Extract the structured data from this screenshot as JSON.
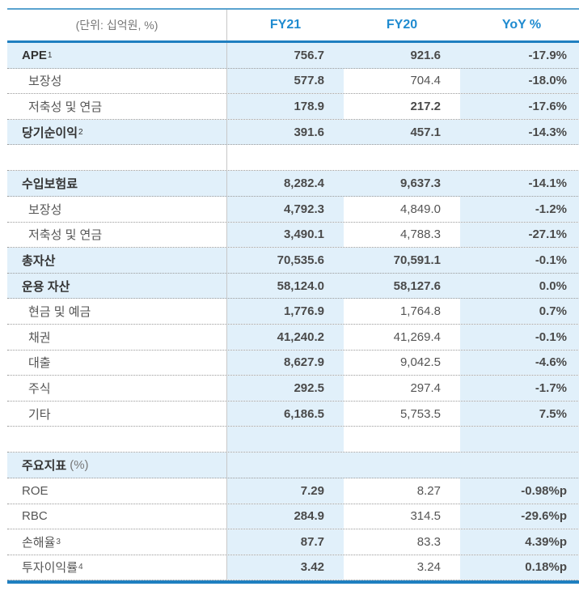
{
  "table": {
    "header": {
      "unit": "(단위: 십억원, %)",
      "columns": [
        "FY21",
        "FY20",
        "YoY %"
      ]
    },
    "rows": [
      {
        "label": "APE",
        "sup": "1",
        "fy21": "756.7",
        "fy20": "921.6",
        "yoy": "-17.9%",
        "style": "bold"
      },
      {
        "label": "보장성",
        "fy21": "577.8",
        "fy20": "704.4",
        "yoy": "-18.0%",
        "style": "sub"
      },
      {
        "label": "저축성 및 연금",
        "fy21": "178.9",
        "fy20": "217.2",
        "yoy": "-17.6%",
        "style": "sub",
        "fy20_bold": true
      },
      {
        "label": "당기순이익",
        "sup": "2",
        "fy21": "391.6",
        "fy20": "457.1",
        "yoy": "-14.3%",
        "style": "bold"
      },
      {
        "label": "",
        "style": "spacer-white"
      },
      {
        "label": "수입보험료",
        "fy21": "8,282.4",
        "fy20": "9,637.3",
        "yoy": "-14.1%",
        "style": "bold"
      },
      {
        "label": "보장성",
        "fy21": "4,792.3",
        "fy20": "4,849.0",
        "yoy": "-1.2%",
        "style": "sub"
      },
      {
        "label": "저축성 및 연금",
        "fy21": "3,490.1",
        "fy20": "4,788.3",
        "yoy": "-27.1%",
        "style": "sub"
      },
      {
        "label": "총자산",
        "fy21": "70,535.6",
        "fy20": "70,591.1",
        "yoy": "-0.1%",
        "style": "bold"
      },
      {
        "label": "운용 자산",
        "fy21": "58,124.0",
        "fy20": "58,127.6",
        "yoy": "0.0%",
        "style": "bold"
      },
      {
        "label": "현금 및 예금",
        "fy21": "1,776.9",
        "fy20": "1,764.8",
        "yoy": "0.7%",
        "style": "sub"
      },
      {
        "label": "채권",
        "fy21": "41,240.2",
        "fy20": "41,269.4",
        "yoy": "-0.1%",
        "style": "sub"
      },
      {
        "label": "대출",
        "fy21": "8,627.9",
        "fy20": "9,042.5",
        "yoy": "-4.6%",
        "style": "sub"
      },
      {
        "label": "주식",
        "fy21": "292.5",
        "fy20": "297.4",
        "yoy": "-1.7%",
        "style": "sub"
      },
      {
        "label": "기타",
        "fy21": "6,186.5",
        "fy20": "5,753.5",
        "yoy": "7.5%",
        "style": "sub"
      },
      {
        "label": "",
        "style": "spacer-sub"
      },
      {
        "label": "주요지표",
        "suffix": "(%)",
        "style": "bold"
      },
      {
        "label": "ROE",
        "fy21": "7.29",
        "fy20": "8.27",
        "yoy": "-0.98%p",
        "style": "plain"
      },
      {
        "label": "RBC",
        "fy21": "284.9",
        "fy20": "314.5",
        "yoy": "-29.6%p",
        "style": "plain"
      },
      {
        "label": "손해율",
        "sup": "3",
        "fy21": "87.7",
        "fy20": "83.3",
        "yoy": "4.39%p",
        "style": "plain"
      },
      {
        "label": "투자이익률",
        "sup": "4",
        "fy21": "3.42",
        "fy20": "3.24",
        "yoy": "0.18%p",
        "style": "plain"
      }
    ]
  },
  "colors": {
    "header_text": "#1f8bd0",
    "accent_line": "#1f7fc0",
    "highlight_bg": "#e1f0fa"
  }
}
